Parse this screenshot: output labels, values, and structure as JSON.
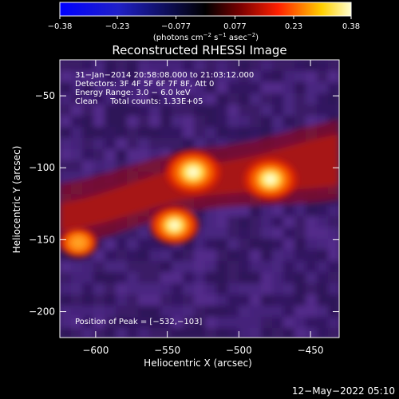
{
  "chart_data": {
    "type": "heatmap",
    "title": "Reconstructed RHESSI Image",
    "xlabel": "Heliocentric X (arcsec)",
    "ylabel": "Heliocentric Y (arcsec)",
    "xlim": [
      -625,
      -430
    ],
    "ylim": [
      -218,
      -25
    ],
    "xticks": [
      -600,
      -550,
      -500,
      -450
    ],
    "yticks": [
      -50,
      -100,
      -150,
      -200
    ],
    "xtick_labels": [
      "−600",
      "−550",
      "−500",
      "−450"
    ],
    "ytick_labels": [
      "−50",
      "−100",
      "−150",
      "−200"
    ],
    "colorbar": {
      "min": -0.38,
      "max": 0.38,
      "ticks": [
        -0.38,
        -0.23,
        -0.077,
        0.077,
        0.23,
        0.38
      ],
      "tick_labels": [
        "−0.38",
        "−0.23",
        "−0.077",
        "0.077",
        "0.23",
        "0.38"
      ],
      "label_html": "(photons cm<tspan dy=\"-4\" font-size=\"7\">−2</tspan><tspan dy=\"4\"> s</tspan><tspan dy=\"-4\" font-size=\"7\">−1</tspan><tspan dy=\"4\"> asec</tspan><tspan dy=\"-4\" font-size=\"7\">−2</tspan><tspan dy=\"4\">)</tspan>"
    },
    "info_lines": [
      "31−Jan−2014 20:58:08.000 to 21:03:12.000",
      "Detectors: 3F 4F 5F 6F 7F 8F, Att 0",
      "Energy Range: 3.0 − 6.0 keV",
      "Clean     Total counts: 1.33E+05"
    ],
    "peak_label": "Position of Peak = [−532,−103]",
    "footer_date": "12−May−2022 05:10",
    "sources": [
      {
        "x": -532,
        "y": -103,
        "intensity": 1.0
      },
      {
        "x": -478,
        "y": -108,
        "intensity": 0.95
      },
      {
        "x": -545,
        "y": -140,
        "intensity": 0.8
      },
      {
        "x": -612,
        "y": -152,
        "intensity": 0.45
      }
    ]
  }
}
